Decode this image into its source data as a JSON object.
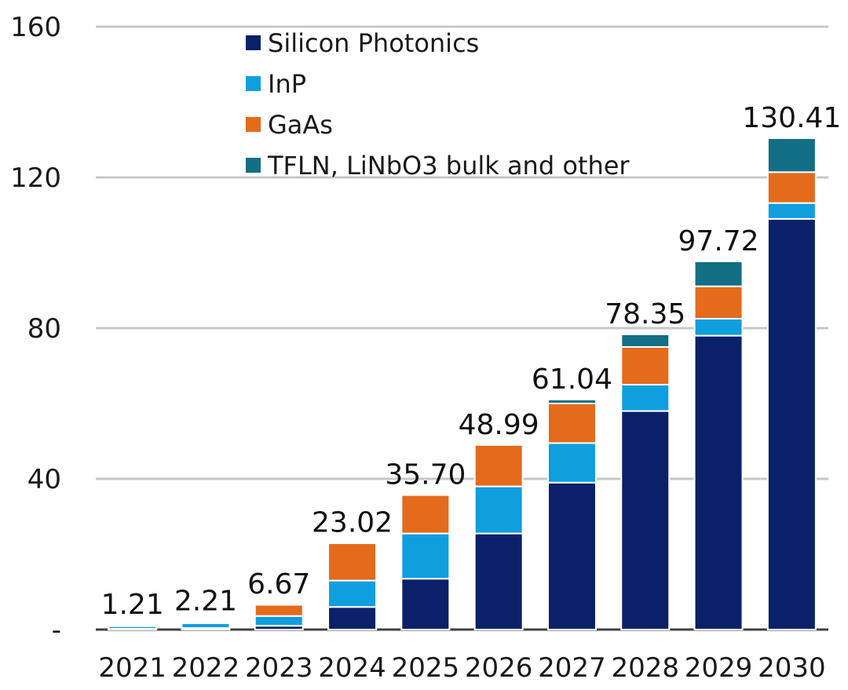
{
  "chart_data": {
    "type": "bar",
    "stacked": true,
    "title": "",
    "xlabel": "",
    "ylabel": "",
    "ylim": [
      0,
      160
    ],
    "y_ticks": [
      {
        "value": 0,
        "label": "-"
      },
      {
        "value": 40,
        "label": "40"
      },
      {
        "value": 80,
        "label": "80"
      },
      {
        "value": 120,
        "label": "120"
      },
      {
        "value": 160,
        "label": "160"
      }
    ],
    "grid": true,
    "legend_position": "top-left",
    "categories": [
      "2021",
      "2022",
      "2023",
      "2024",
      "2025",
      "2026",
      "2027",
      "2028",
      "2029",
      "2030"
    ],
    "series": [
      {
        "name": "Silicon Photonics",
        "color": "#0a2068",
        "values": [
          0.2,
          0.4,
          1.0,
          6.0,
          13.5,
          25.5,
          39.0,
          58.0,
          78.0,
          109.0
        ]
      },
      {
        "name": "InP",
        "color": "#0f9fdf",
        "values": [
          0.7,
          1.3,
          2.6,
          7.0,
          12.0,
          12.5,
          10.5,
          7.0,
          4.5,
          4.2
        ]
      },
      {
        "name": "GaAs",
        "color": "#e46b1b",
        "values": [
          0.3,
          0.5,
          3.0,
          10.0,
          10.2,
          11.0,
          10.5,
          10.0,
          8.6,
          8.2
        ]
      },
      {
        "name": "TFLN, LiNbO3 bulk and other",
        "color": "#136f86",
        "values": [
          0.01,
          0.01,
          0.07,
          0.02,
          0.0,
          0.0,
          1.04,
          3.35,
          6.62,
          9.01
        ]
      }
    ],
    "totals": [
      "1.21",
      "2.21",
      "6.67",
      "23.02",
      "35.70",
      "48.99",
      "61.04",
      "78.35",
      "97.72",
      "130.41"
    ]
  }
}
